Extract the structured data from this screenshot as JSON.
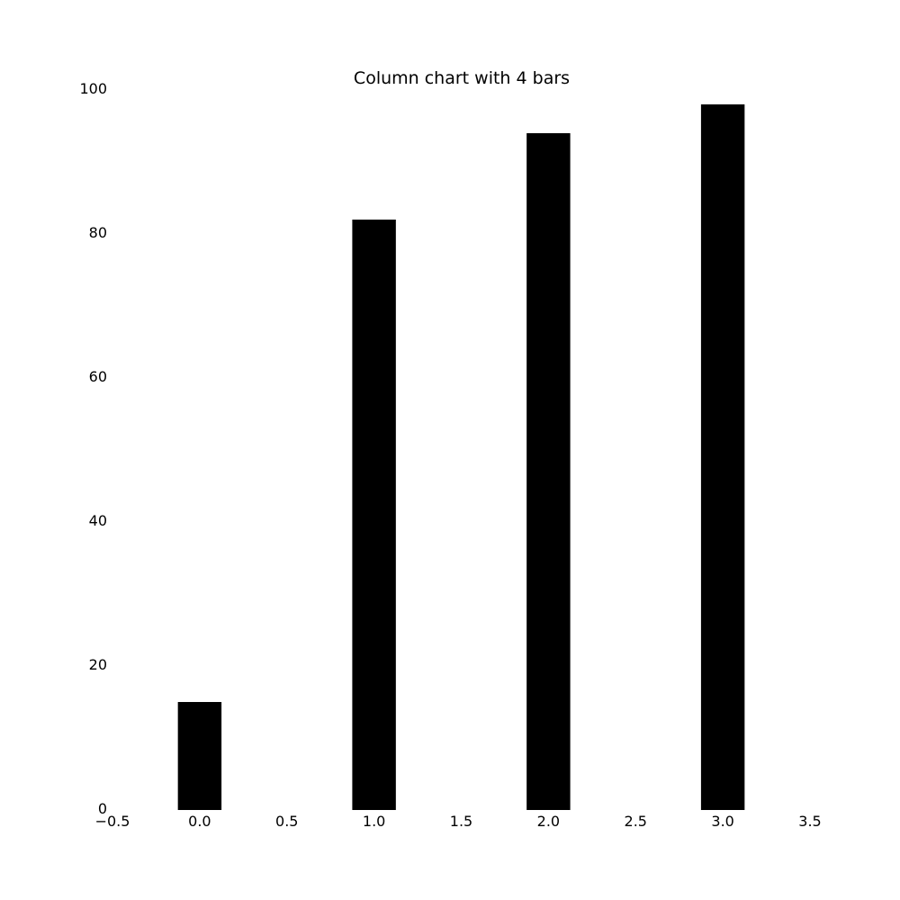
{
  "chart_data": {
    "type": "bar",
    "title": "Column chart with 4 bars",
    "xlabel": "",
    "ylabel": "",
    "x": [
      0,
      1,
      2,
      3
    ],
    "values": [
      15,
      82,
      94,
      98
    ],
    "bar_width": 0.25,
    "xlim": [
      -0.5,
      3.5
    ],
    "ylim": [
      0,
      100
    ],
    "xticks": [
      -0.5,
      0.0,
      0.5,
      1.0,
      1.5,
      2.0,
      2.5,
      3.0,
      3.5
    ],
    "xtick_labels": [
      "−0.5",
      "0.0",
      "0.5",
      "1.0",
      "1.5",
      "2.0",
      "2.5",
      "3.0",
      "3.5"
    ],
    "yticks": [
      0,
      20,
      40,
      60,
      80,
      100
    ],
    "ytick_labels": [
      "0",
      "20",
      "40",
      "60",
      "80",
      "100"
    ],
    "bar_color": "#000000",
    "grid": false,
    "legend": false
  }
}
